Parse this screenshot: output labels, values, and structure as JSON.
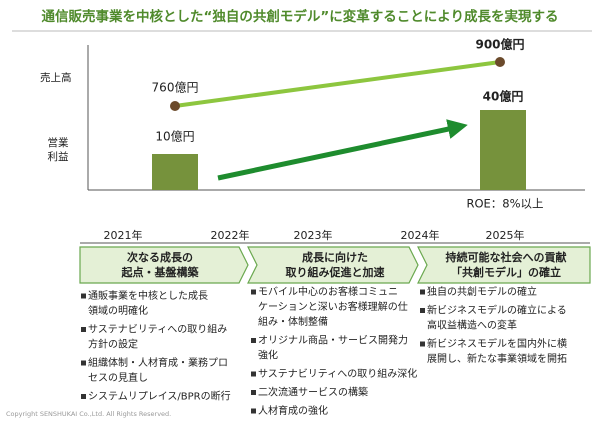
{
  "header": {
    "title": "通信販売事業を中核とした“独自の共創モデル”に変革することにより成長を実現する"
  },
  "chart": {
    "sales_label": "売上高",
    "profit_label": [
      "営業",
      "利益"
    ],
    "sales_start": "760億円",
    "sales_end": "900億円",
    "profit_start": "10億円",
    "profit_end": "40億円",
    "roe": "ROE：8%以上"
  },
  "timeline": {
    "years": [
      "2021年",
      "2022年",
      "2023年",
      "2024年",
      "2025年"
    ],
    "phases": [
      {
        "title": [
          "次なる成長の",
          "起点・基盤構築"
        ],
        "items": [
          [
            "通販事業を中核とした成長",
            "領域の明確化"
          ],
          [
            "サステナビリティへの取り組み",
            "方針の設定"
          ],
          [
            "組織体制・人材育成・業務プロ",
            "セスの見直し"
          ],
          [
            "システムリプレイス/BPRの断行"
          ]
        ]
      },
      {
        "title": [
          "成長に向けた",
          "取り組み促進と加速"
        ],
        "items": [
          [
            "モバイル中心のお客様コミュニ",
            "ケーションと深いお客様理解の仕",
            "組み・体制整備"
          ],
          [
            "オリジナル商品・サービス開発力",
            "強化"
          ],
          [
            "サステナビリティへの取り組み深化"
          ],
          [
            "二次流通サービスの構築"
          ],
          [
            "人材育成の強化"
          ]
        ]
      },
      {
        "title": [
          "持続可能な社会への貢献",
          "「共創モデル」の確立"
        ],
        "items": [
          [
            "独自の共創モデルの確立"
          ],
          [
            "新ビジネスモデルの確立による",
            "高収益構造への変革"
          ],
          [
            "新ビジネスモデルを国内外に横",
            "展開し、新たな事業領域を開拓"
          ]
        ]
      }
    ]
  },
  "footer": {
    "copyright": "Copyright SENSHUKAI Co.,Ltd. All Rights Reserved."
  }
}
